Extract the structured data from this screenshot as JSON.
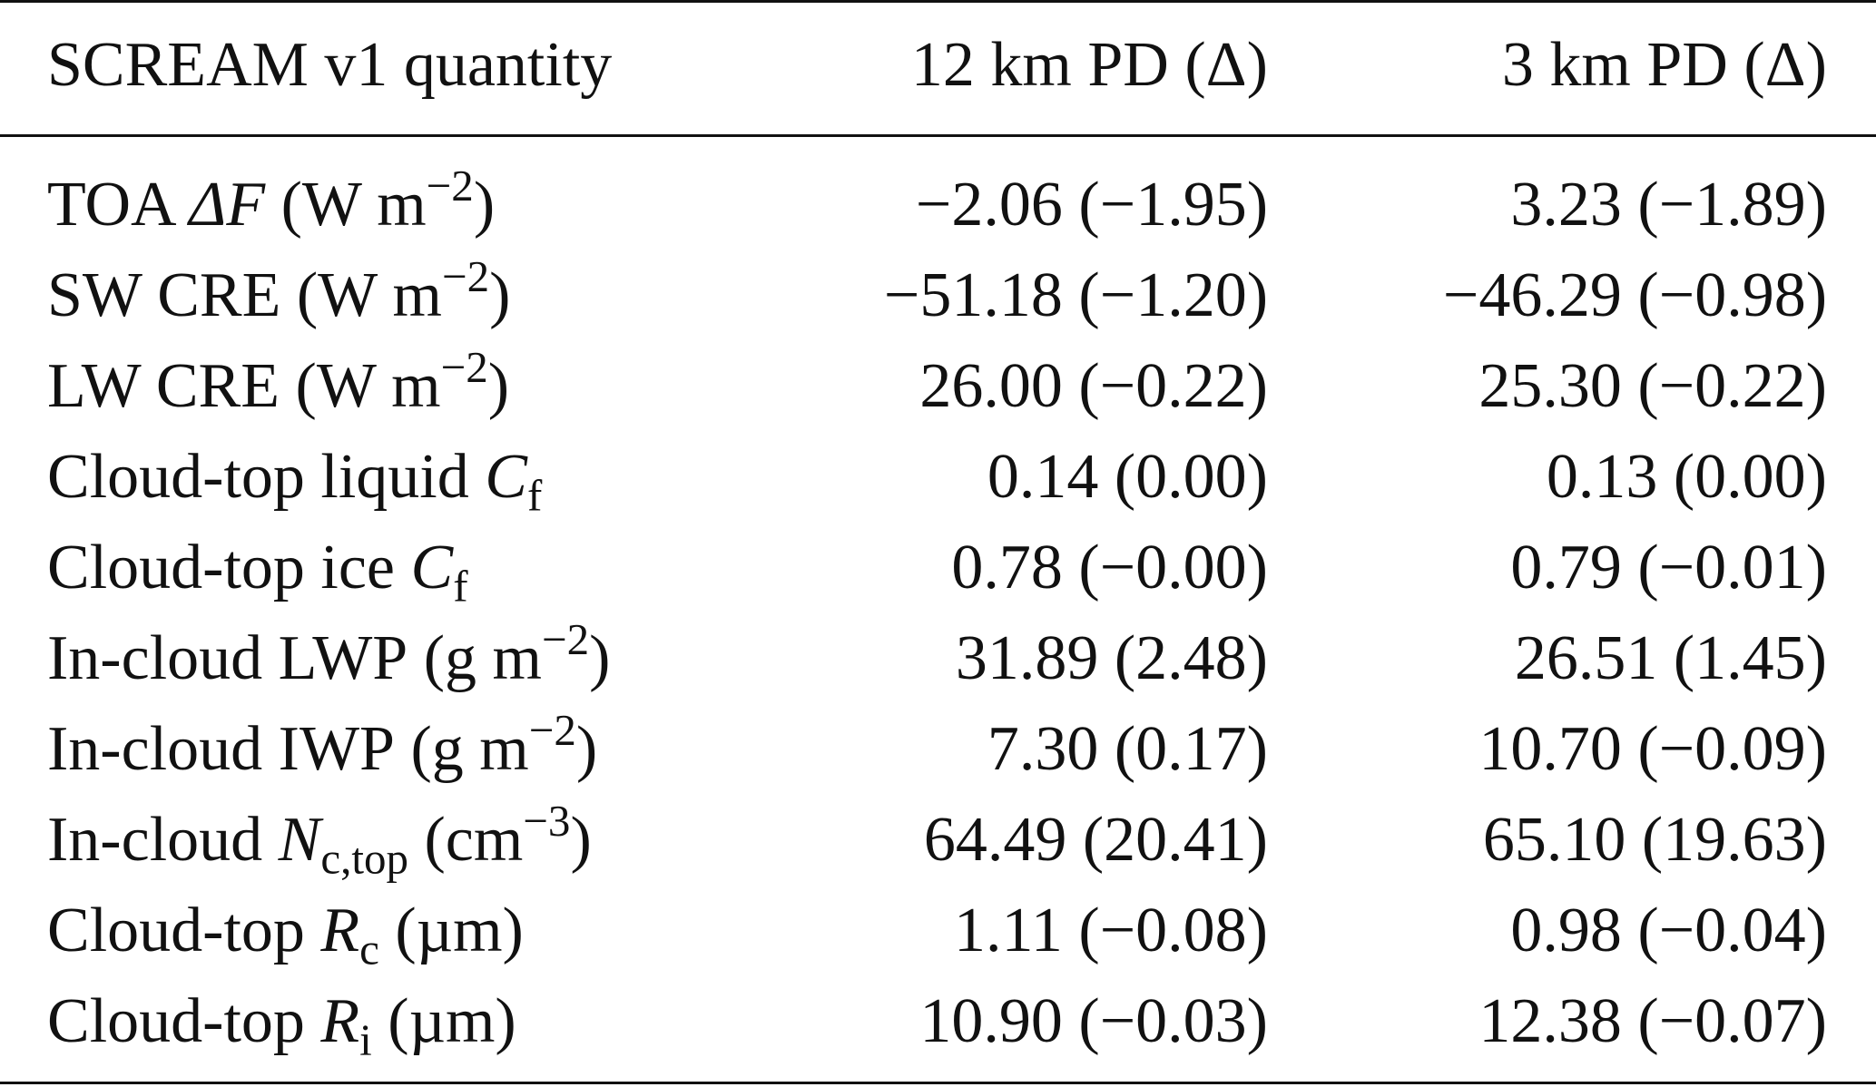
{
  "table": {
    "headers": [
      "SCREAM v1 quantity",
      "12 km PD (Δ)",
      "3 km PD (Δ)"
    ],
    "rows": [
      {
        "pre": "TOA ",
        "sym": "ΔF",
        "sub": "",
        "unit_pre": " (W m",
        "unit_sup": "−2",
        "unit_post": ")",
        "v12": "−2.06 (−1.95)",
        "v3": "3.23 (−1.89)"
      },
      {
        "pre": "SW CRE",
        "sym": "",
        "sub": "",
        "unit_pre": " (W m",
        "unit_sup": "−2",
        "unit_post": ")",
        "v12": "−51.18 (−1.20)",
        "v3": "−46.29 (−0.98)"
      },
      {
        "pre": "LW CRE",
        "sym": "",
        "sub": "",
        "unit_pre": " (W m",
        "unit_sup": "−2",
        "unit_post": ")",
        "v12": "26.00 (−0.22)",
        "v3": "25.30 (−0.22)"
      },
      {
        "pre": "Cloud-top liquid ",
        "sym": "C",
        "sub": "f",
        "unit_pre": "",
        "unit_sup": "",
        "unit_post": "",
        "v12": "0.14 (0.00)",
        "v3": "0.13 (0.00)"
      },
      {
        "pre": "Cloud-top ice ",
        "sym": "C",
        "sub": "f",
        "unit_pre": "",
        "unit_sup": "",
        "unit_post": "",
        "v12": "0.78 (−0.00)",
        "v3": "0.79 (−0.01)"
      },
      {
        "pre": "In-cloud LWP",
        "sym": "",
        "sub": "",
        "unit_pre": " (g m",
        "unit_sup": "−2",
        "unit_post": ")",
        "v12": "31.89 (2.48)",
        "v3": "26.51 (1.45)"
      },
      {
        "pre": "In-cloud IWP",
        "sym": "",
        "sub": "",
        "unit_pre": " (g m",
        "unit_sup": "−2",
        "unit_post": ")",
        "v12": "7.30 (0.17)",
        "v3": "10.70 (−0.09)"
      },
      {
        "pre": "In-cloud ",
        "sym": "N",
        "sub": "c,top",
        "unit_pre": " (cm",
        "unit_sup": "−3",
        "unit_post": ")",
        "v12": "64.49 (20.41)",
        "v3": "65.10 (19.63)"
      },
      {
        "pre": "Cloud-top ",
        "sym": "R",
        "sub": "c",
        "unit_pre": " (µm)",
        "unit_sup": "",
        "unit_post": "",
        "v12": "1.11 (−0.08)",
        "v3": "0.98 (−0.04)"
      },
      {
        "pre": "Cloud-top ",
        "sym": "R",
        "sub": "i",
        "unit_pre": " (µm)",
        "unit_sup": "",
        "unit_post": "",
        "v12": "10.90 (−0.03)",
        "v3": "12.38 (−0.07)"
      }
    ]
  }
}
